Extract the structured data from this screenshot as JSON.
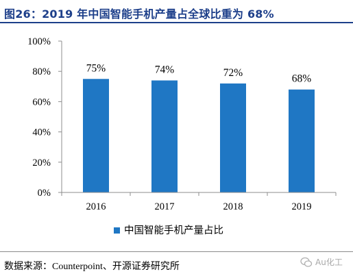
{
  "header": {
    "title": "图26：2019 年中国智能手机产量占全球比重为 68%"
  },
  "chart_data": {
    "type": "bar",
    "categories": [
      "2016",
      "2017",
      "2018",
      "2019"
    ],
    "series": [
      {
        "name": "中国智能手机产量占比",
        "values": [
          75,
          74,
          72,
          68
        ],
        "labels": [
          "75%",
          "74%",
          "72%",
          "68%"
        ],
        "color": "#1f77c4"
      }
    ],
    "ylim": [
      0,
      100
    ],
    "yticks": [
      0,
      20,
      40,
      60,
      80,
      100
    ],
    "ytick_labels": [
      "0%",
      "20%",
      "40%",
      "60%",
      "80%",
      "100%"
    ],
    "grid": false,
    "legend": "bottom-center"
  },
  "footer": {
    "source": "数据来源：Counterpoint、开源证券研究所",
    "watermark": "Au化工"
  }
}
